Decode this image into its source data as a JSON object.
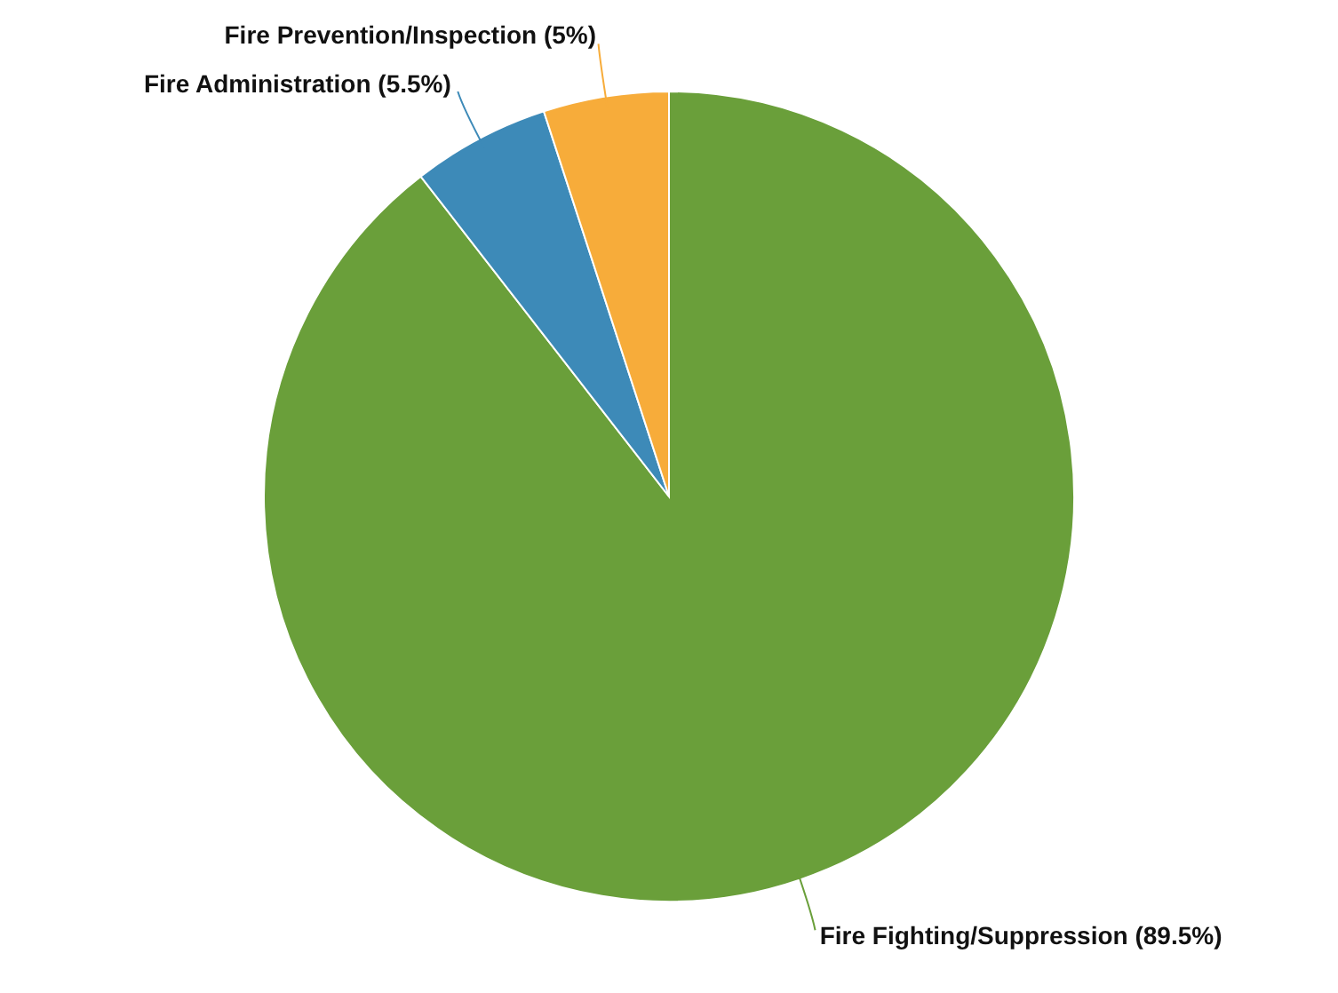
{
  "chart_data": {
    "type": "pie",
    "categories": [
      "Fire Fighting/Suppression",
      "Fire Administration",
      "Fire Prevention/Inspection"
    ],
    "values": [
      89.5,
      5.5,
      5
    ],
    "value_labels": [
      "(89.5%)",
      "(5.5%)",
      "(5%)"
    ],
    "colors": [
      "#6a9f3a",
      "#3d8ab8",
      "#f7ac3a"
    ]
  }
}
